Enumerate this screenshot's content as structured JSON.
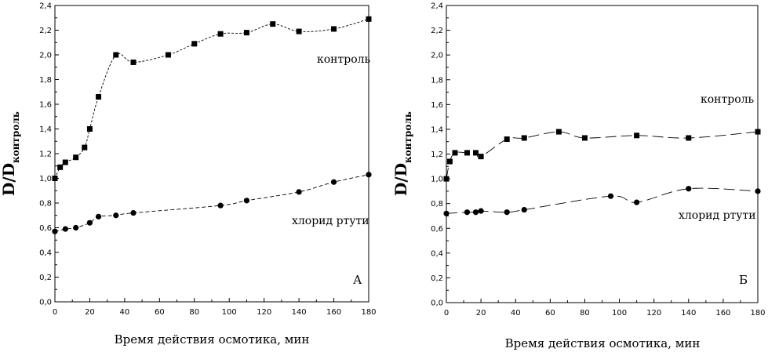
{
  "chart_data": [
    {
      "type": "scatter",
      "panel_label": "А",
      "xlabel": "Время действия осмотика, мин",
      "ylabel": "D/D",
      "ylabel_sub": "контроль",
      "xlim": [
        0,
        180
      ],
      "ylim": [
        0,
        2.4
      ],
      "xticks": [
        "0",
        "20",
        "40",
        "60",
        "80",
        "100",
        "120",
        "140",
        "160",
        "180"
      ],
      "yticks": [
        "0,0",
        "0,2",
        "0,4",
        "0,6",
        "0,8",
        "1,0",
        "1,2",
        "1,4",
        "1,6",
        "1,8",
        "2,0",
        "2,2",
        "2,4"
      ],
      "grid": false,
      "series": [
        {
          "name": "контроль",
          "marker": "square",
          "x": [
            0,
            3,
            6,
            12,
            17,
            20,
            25,
            35,
            45,
            65,
            80,
            95,
            110,
            125,
            140,
            160,
            180
          ],
          "y": [
            1.0,
            1.09,
            1.13,
            1.17,
            1.25,
            1.4,
            1.66,
            2.0,
            1.94,
            2.0,
            2.09,
            2.17,
            2.18,
            2.25,
            2.19,
            2.21,
            2.29
          ]
        },
        {
          "name": "хлорид ртути",
          "marker": "circle",
          "x": [
            0,
            6,
            12,
            20,
            25,
            35,
            45,
            95,
            110,
            140,
            160,
            180
          ],
          "y": [
            0.57,
            0.59,
            0.6,
            0.64,
            0.69,
            0.7,
            0.72,
            0.78,
            0.82,
            0.89,
            0.97,
            1.03
          ]
        }
      ]
    },
    {
      "type": "scatter",
      "panel_label": "Б",
      "xlabel": "Время действия осмотика, мин",
      "ylabel": "D/D",
      "ylabel_sub": "контроль",
      "xlim": [
        0,
        180
      ],
      "ylim": [
        0,
        2.4
      ],
      "xticks": [
        "0",
        "20",
        "40",
        "60",
        "80",
        "100",
        "120",
        "140",
        "160",
        "180"
      ],
      "yticks": [
        "0,0",
        "0,2",
        "0,4",
        "0,6",
        "0,8",
        "1,0",
        "1,2",
        "1,4",
        "1,6",
        "1,8",
        "2,0",
        "2,2",
        "2,4"
      ],
      "grid": false,
      "series": [
        {
          "name": "контроль",
          "marker": "square",
          "x": [
            0,
            2,
            5,
            12,
            17,
            20,
            35,
            45,
            65,
            80,
            110,
            140,
            180
          ],
          "y": [
            1.0,
            1.14,
            1.21,
            1.21,
            1.21,
            1.18,
            1.32,
            1.33,
            1.38,
            1.33,
            1.35,
            1.33,
            1.38
          ]
        },
        {
          "name": "хлорид ртути",
          "marker": "circle",
          "x": [
            0,
            12,
            17,
            20,
            35,
            45,
            95,
            110,
            140,
            180
          ],
          "y": [
            0.72,
            0.73,
            0.73,
            0.74,
            0.73,
            0.75,
            0.86,
            0.81,
            0.92,
            0.9
          ]
        }
      ]
    }
  ]
}
